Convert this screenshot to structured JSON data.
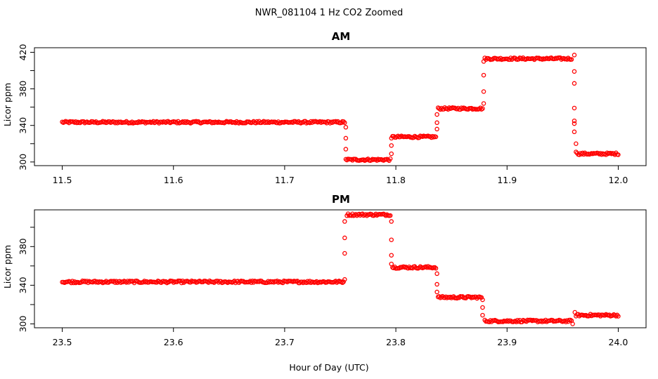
{
  "title": "NWR_081104  1 Hz CO2 Zoomed",
  "xlabel": "Hour of Day (UTC)",
  "marker_color": "#ff0000",
  "chart_data": [
    {
      "type": "scatter",
      "title": "AM",
      "ylabel": "Licor ppm",
      "xlim": [
        11.475,
        12.025
      ],
      "ylim": [
        296,
        425
      ],
      "xticks": [
        "11.5",
        "11.6",
        "11.7",
        "11.8",
        "11.9",
        "12.0"
      ],
      "yticks": [
        "300",
        "340",
        "380",
        "420"
      ],
      "yminor": [
        320,
        360,
        400
      ],
      "segments": [
        {
          "x0": 11.5,
          "x1": 11.754,
          "y": 343.5
        },
        {
          "x0": 11.756,
          "x1": 11.795,
          "y": 302.5
        },
        {
          "x0": 11.797,
          "x1": 11.836,
          "y": 327.5
        },
        {
          "x0": 11.838,
          "x1": 11.878,
          "y": 358.5
        },
        {
          "x0": 11.88,
          "x1": 11.958,
          "y": 413.0
        },
        {
          "x0": 11.963,
          "x1": 12.0,
          "y": 309.0
        }
      ],
      "transitions": [
        {
          "x": 11.755,
          "y": [
            338,
            326,
            314,
            303
          ]
        },
        {
          "x": 11.796,
          "y": [
            309,
            318,
            326
          ]
        },
        {
          "x": 11.837,
          "y": [
            336,
            343,
            352
          ]
        },
        {
          "x": 11.879,
          "y": [
            364,
            377,
            395,
            410
          ]
        },
        {
          "x": 11.9605,
          "y": [
            417,
            399,
            386,
            359,
            345,
            342,
            333
          ]
        },
        {
          "x": 11.962,
          "y": [
            320,
            311
          ]
        }
      ]
    },
    {
      "type": "scatter",
      "title": "PM",
      "ylabel": "Licor ppm",
      "xlim": [
        23.475,
        24.025
      ],
      "ylim": [
        296,
        418
      ],
      "xticks": [
        "23.5",
        "23.6",
        "23.7",
        "23.8",
        "23.9",
        "24.0"
      ],
      "yticks": [
        "300",
        "340",
        "380"
      ],
      "yminor": [
        320,
        360,
        400
      ],
      "segments": [
        {
          "x0": 23.5,
          "x1": 23.753,
          "y": 343.5
        },
        {
          "x0": 23.756,
          "x1": 23.795,
          "y": 413.0
        },
        {
          "x0": 23.797,
          "x1": 23.836,
          "y": 358.5
        },
        {
          "x0": 23.838,
          "x1": 23.877,
          "y": 327.5
        },
        {
          "x0": 23.88,
          "x1": 23.958,
          "y": 303.0
        },
        {
          "x0": 23.962,
          "x1": 24.0,
          "y": 309.0
        }
      ],
      "transitions": [
        {
          "x": 23.754,
          "y": [
            346,
            373,
            389,
            406
          ]
        },
        {
          "x": 23.796,
          "y": [
            406,
            387,
            371,
            362
          ]
        },
        {
          "x": 23.837,
          "y": [
            352,
            341,
            333
          ]
        },
        {
          "x": 23.878,
          "y": [
            325,
            317,
            309
          ]
        },
        {
          "x": 23.959,
          "y": [
            300
          ]
        },
        {
          "x": 23.961,
          "y": [
            312
          ]
        }
      ]
    }
  ]
}
